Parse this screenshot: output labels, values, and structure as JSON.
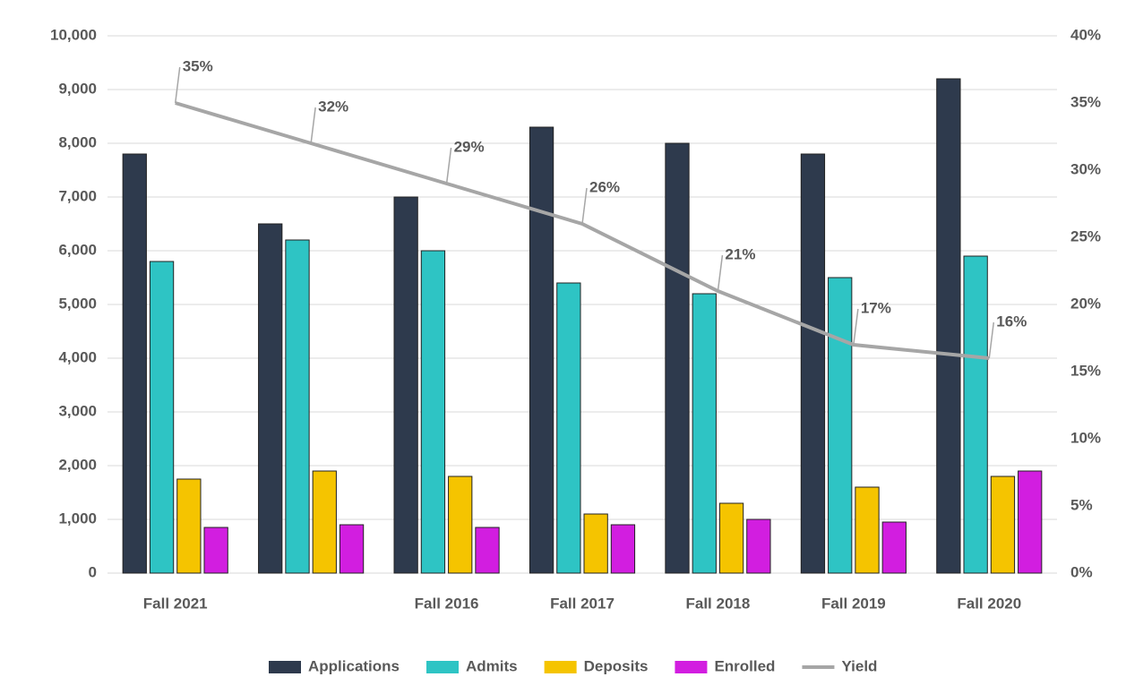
{
  "chart_data": {
    "type": "bar",
    "categories": [
      "Fall 2021",
      null,
      "Fall 2016",
      "Fall 2017",
      "Fall 2018",
      "Fall 2019",
      "Fall 2020"
    ],
    "series": [
      {
        "name": "Applications",
        "color": "#2e3a4d",
        "values": [
          7800,
          6500,
          7000,
          8300,
          8000,
          7800,
          9200
        ]
      },
      {
        "name": "Admits",
        "color": "#2ec4c4",
        "values": [
          5800,
          6200,
          6000,
          5400,
          5200,
          5500,
          5900
        ]
      },
      {
        "name": "Deposits",
        "color": "#f5c400",
        "values": [
          1750,
          1900,
          1800,
          1100,
          1300,
          1600,
          1800
        ]
      },
      {
        "name": "Enrolled",
        "color": "#d21ee0",
        "values": [
          850,
          900,
          850,
          900,
          1000,
          950,
          1900
        ]
      },
      {
        "name": "Yield",
        "color": "#a6a6a6",
        "axis": "y2",
        "values": [
          35,
          32,
          29,
          26,
          21,
          17,
          16
        ],
        "value_labels": [
          "35%",
          "32%",
          "29%",
          "26%",
          "21%",
          "17%",
          "16%"
        ]
      }
    ],
    "ylim": [
      0,
      10000
    ],
    "yticks": [
      0,
      {
        "value": 1000,
        "label": "1,000"
      },
      {
        "value": 2000,
        "label": "2,000"
      },
      {
        "value": 3000,
        "label": "3,000"
      },
      {
        "value": 4000,
        "label": "4,000"
      },
      {
        "value": 5000,
        "label": "5,000"
      },
      {
        "value": 6000,
        "label": "6,000"
      },
      {
        "value": 7000,
        "label": "7,000"
      },
      {
        "value": 8000,
        "label": "8,000"
      },
      {
        "value": 9000,
        "label": "9,000"
      },
      {
        "value": 10000,
        "label": "10,000"
      }
    ],
    "y2lim": [
      0,
      40
    ],
    "y2ticks": [
      {
        "value": 0,
        "label": "0%"
      },
      {
        "value": 5,
        "label": "5%"
      },
      {
        "value": 10,
        "label": "10%"
      },
      {
        "value": 15,
        "label": "15%"
      },
      {
        "value": 20,
        "label": "20%"
      },
      {
        "value": 25,
        "label": "25%"
      },
      {
        "value": 30,
        "label": "30%"
      },
      {
        "value": 35,
        "label": "35%"
      },
      {
        "value": 40,
        "label": "40%"
      }
    ],
    "grid": true
  }
}
